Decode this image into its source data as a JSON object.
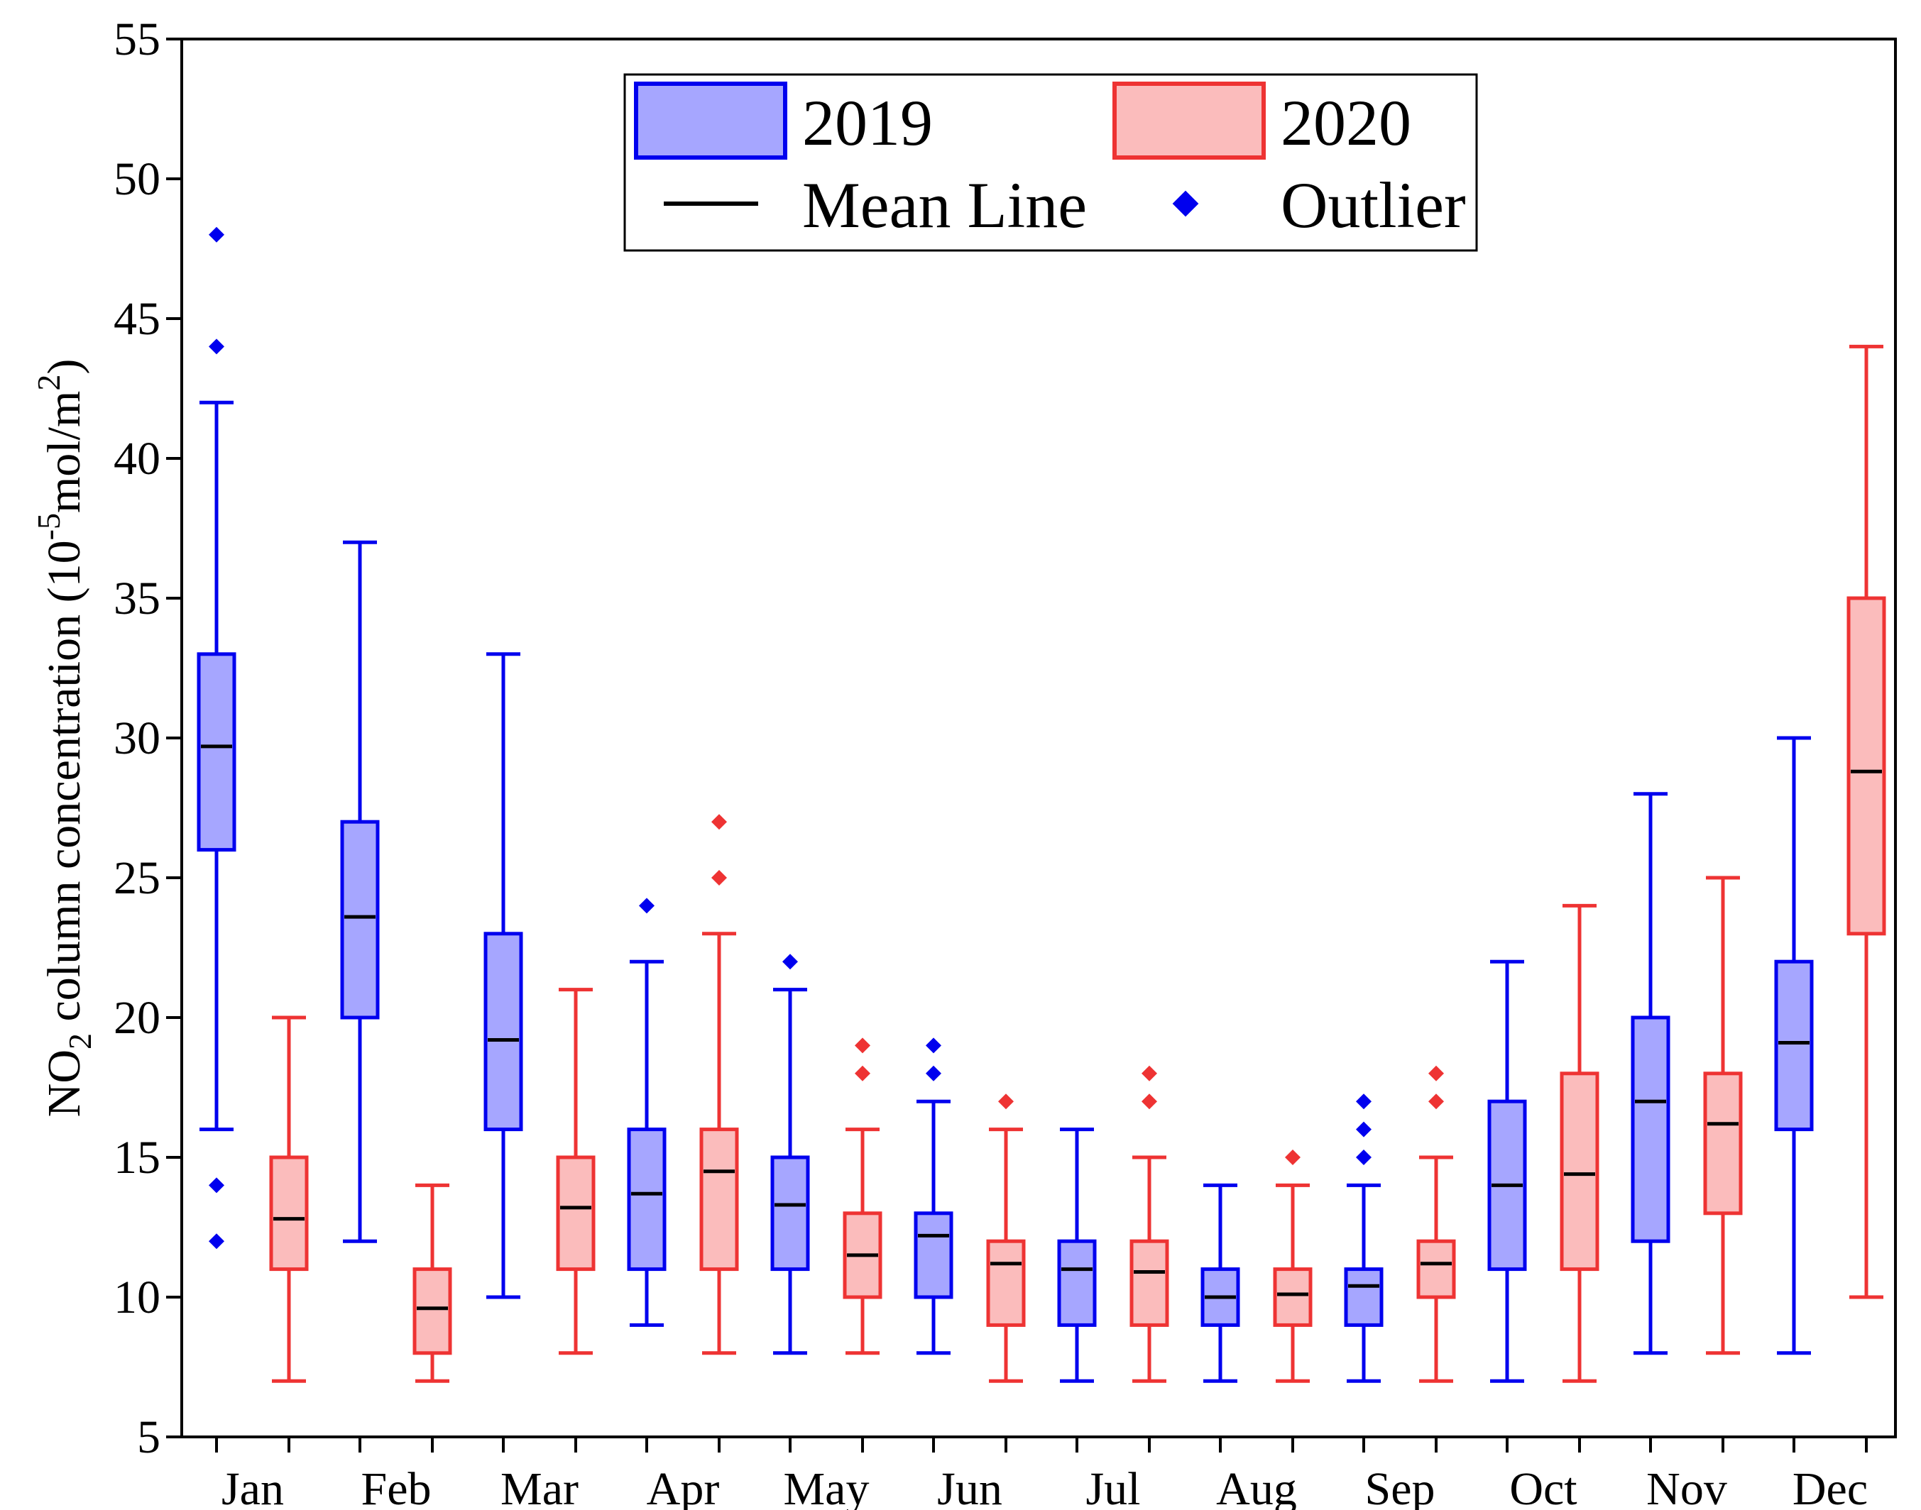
{
  "chart_data": {
    "type": "box",
    "title": "",
    "xlabel": "",
    "ylabel": {
      "pre": "NO",
      "sub": "2",
      "mid": " column concentration (10",
      "sup1": "-5",
      "mid2": "mol/m",
      "sup2": "2",
      "post": ")"
    },
    "ylim": [
      5,
      55
    ],
    "yticks": [
      5,
      10,
      15,
      20,
      25,
      30,
      35,
      40,
      45,
      50,
      55
    ],
    "categories": [
      "Jan",
      "Feb",
      "Mar",
      "Apr",
      "May",
      "Jun",
      "Jul",
      "Aug",
      "Sep",
      "Oct",
      "Nov",
      "Dec"
    ],
    "series": [
      {
        "name": "2019",
        "color": "#0000ee",
        "fill": "#a6a6ff",
        "boxes": [
          {
            "min": 16,
            "q1": 26,
            "q3": 33,
            "max": 42,
            "mean": 29.7,
            "outliers": [
              48,
              44,
              14,
              12
            ]
          },
          {
            "min": 12,
            "q1": 20,
            "q3": 27,
            "max": 37,
            "mean": 23.6,
            "outliers": []
          },
          {
            "min": 10,
            "q1": 16,
            "q3": 23,
            "max": 33,
            "mean": 19.2,
            "outliers": []
          },
          {
            "min": 9,
            "q1": 11,
            "q3": 16,
            "max": 22,
            "mean": 13.7,
            "outliers": [
              24
            ]
          },
          {
            "min": 8,
            "q1": 11,
            "q3": 15,
            "max": 21,
            "mean": 13.3,
            "outliers": [
              22
            ]
          },
          {
            "min": 8,
            "q1": 10,
            "q3": 13,
            "max": 17,
            "mean": 12.2,
            "outliers": [
              19,
              18
            ]
          },
          {
            "min": 7,
            "q1": 9,
            "q3": 12,
            "max": 16,
            "mean": 11.0,
            "outliers": []
          },
          {
            "min": 7,
            "q1": 9,
            "q3": 11,
            "max": 14,
            "mean": 10.0,
            "outliers": []
          },
          {
            "min": 7,
            "q1": 9,
            "q3": 11,
            "max": 14,
            "mean": 10.4,
            "outliers": [
              17,
              16,
              15
            ]
          },
          {
            "min": 7,
            "q1": 11,
            "q3": 17,
            "max": 22,
            "mean": 14.0,
            "outliers": []
          },
          {
            "min": 8,
            "q1": 12,
            "q3": 20,
            "max": 28,
            "mean": 17.0,
            "outliers": []
          },
          {
            "min": 8,
            "q1": 16,
            "q3": 22,
            "max": 30,
            "mean": 19.1,
            "outliers": []
          }
        ]
      },
      {
        "name": "2020",
        "color": "#ee3333",
        "fill": "#fbbcbc",
        "boxes": [
          {
            "min": 7,
            "q1": 11,
            "q3": 15,
            "max": 20,
            "mean": 12.8,
            "outliers": []
          },
          {
            "min": 7,
            "q1": 8,
            "q3": 11,
            "max": 14,
            "mean": 9.6,
            "outliers": []
          },
          {
            "min": 8,
            "q1": 11,
            "q3": 15,
            "max": 21,
            "mean": 13.2,
            "outliers": []
          },
          {
            "min": 8,
            "q1": 11,
            "q3": 16,
            "max": 23,
            "mean": 14.5,
            "outliers": [
              27,
              25
            ]
          },
          {
            "min": 8,
            "q1": 10,
            "q3": 13,
            "max": 16,
            "mean": 11.5,
            "outliers": [
              19,
              18
            ]
          },
          {
            "min": 7,
            "q1": 9,
            "q3": 12,
            "max": 16,
            "mean": 11.2,
            "outliers": [
              17
            ]
          },
          {
            "min": 7,
            "q1": 9,
            "q3": 12,
            "max": 15,
            "mean": 10.9,
            "outliers": [
              18,
              17
            ]
          },
          {
            "min": 7,
            "q1": 9,
            "q3": 11,
            "max": 14,
            "mean": 10.1,
            "outliers": [
              15
            ]
          },
          {
            "min": 7,
            "q1": 10,
            "q3": 12,
            "max": 15,
            "mean": 11.2,
            "outliers": [
              18,
              17
            ]
          },
          {
            "min": 7,
            "q1": 11,
            "q3": 18,
            "max": 24,
            "mean": 14.4,
            "outliers": []
          },
          {
            "min": 8,
            "q1": 13,
            "q3": 18,
            "max": 25,
            "mean": 16.2,
            "outliers": []
          },
          {
            "min": 10,
            "q1": 23,
            "q3": 35,
            "max": 44,
            "mean": 28.8,
            "outliers": []
          }
        ]
      }
    ],
    "legend": {
      "position": "top-center",
      "entries": [
        "2019",
        "2020",
        "Mean Line",
        "Outlier"
      ]
    }
  }
}
